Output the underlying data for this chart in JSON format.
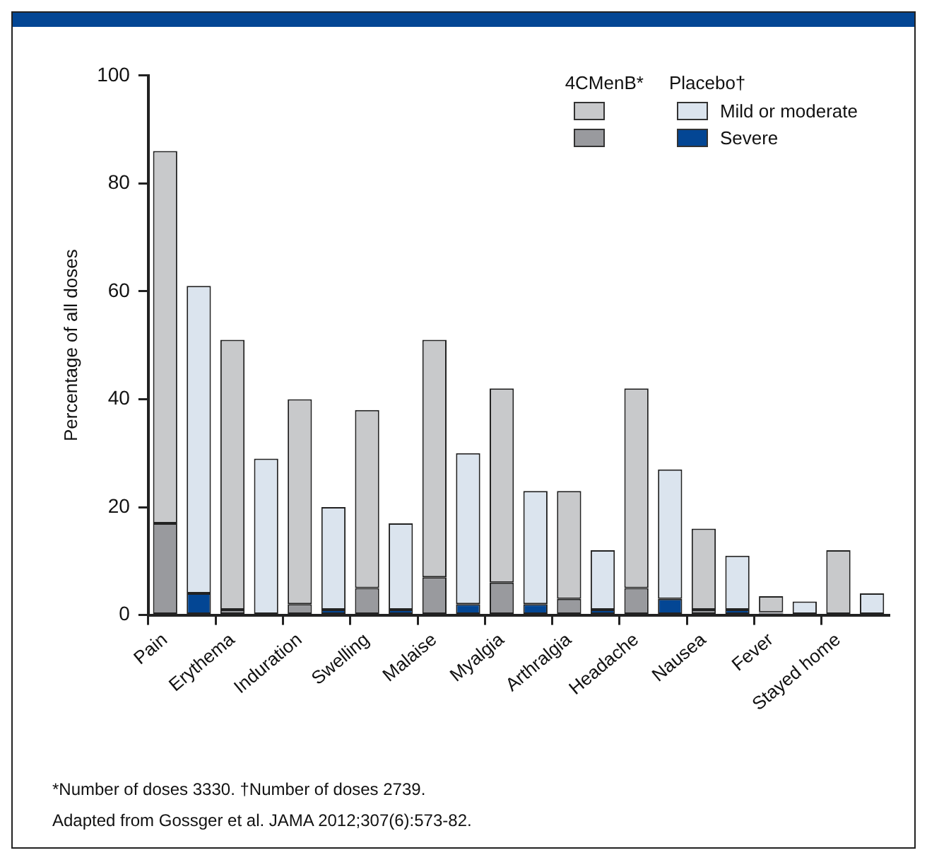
{
  "chart_data": {
    "type": "bar",
    "stacked": true,
    "ylabel": "Percentage of all doses",
    "categories": [
      "Pain",
      null,
      "Erythema",
      null,
      "Induration",
      null,
      "Swelling",
      null,
      "Malaise",
      null,
      "Myalgia",
      null,
      "Arthralgia",
      null,
      "Headache",
      null,
      "Nausea",
      null,
      "Fever",
      null,
      "Stayed home",
      null
    ],
    "series": [
      {
        "color": "#999a9e",
        "values": [
          17,
          null,
          1,
          null,
          2,
          null,
          5,
          null,
          7,
          null,
          6,
          null,
          3,
          null,
          5,
          null,
          1,
          null,
          0.5,
          null,
          0,
          null
        ]
      },
      {
        "color": "#c8c9cb",
        "values": [
          69,
          null,
          50,
          null,
          38,
          null,
          33,
          null,
          44,
          null,
          36,
          null,
          20,
          null,
          37,
          null,
          15,
          null,
          3,
          null,
          12,
          null
        ]
      },
      {
        "name": "Severe",
        "color": "#034694",
        "values": [
          null,
          4,
          null,
          0,
          null,
          1,
          null,
          1,
          null,
          2,
          null,
          2,
          null,
          1,
          null,
          3,
          null,
          1,
          null,
          0,
          null,
          0
        ]
      },
      {
        "name": "Mild or moderate",
        "color": "#dbe4ee",
        "values": [
          null,
          57,
          null,
          29,
          null,
          19,
          null,
          16,
          null,
          28,
          null,
          21,
          null,
          11,
          null,
          24,
          null,
          10,
          null,
          2.5,
          null,
          4
        ]
      }
    ],
    "ylim": [
      0,
      100
    ],
    "yticks": [
      0,
      20,
      40,
      60,
      80,
      100
    ],
    "grid": false,
    "legend": "top right",
    "legend_title": [
      "4CMenB*",
      "Placebo†"
    ],
    "annotations": [
      "*Number of doses 3330. †Number of doses 2739.",
      "Adapted from Gossger et al. JAMA 2012;307(6):573-82."
    ]
  }
}
